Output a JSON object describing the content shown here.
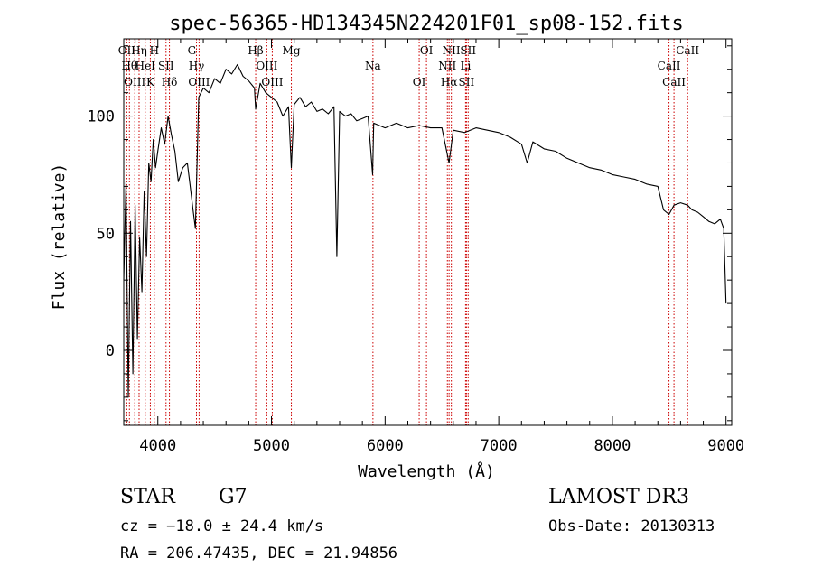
{
  "chart_data": {
    "type": "line",
    "title": "spec-56365-HD134345N224201F01_sp08-152.fits",
    "xlabel": "Wavelength (Å)",
    "ylabel": "Flux (relative)",
    "xlim": [
      3700,
      9050
    ],
    "ylim": [
      -32,
      133
    ],
    "x_ticks": [
      4000,
      5000,
      6000,
      7000,
      8000,
      9000
    ],
    "y_ticks": [
      0,
      50,
      100
    ],
    "grid": false,
    "line_color": "#000000",
    "marker_color": "#cc0000",
    "series": [
      {
        "x": [
          3700,
          3720,
          3740,
          3760,
          3780,
          3800,
          3820,
          3840,
          3860,
          3880,
          3900,
          3920,
          3940,
          3960,
          3980,
          4000,
          4030,
          4060,
          4090,
          4120,
          4150,
          4180,
          4220,
          4260,
          4290,
          4310,
          4330,
          4360,
          4400,
          4450,
          4500,
          4550,
          4600,
          4650,
          4700,
          4750,
          4800,
          4850,
          4861,
          4900,
          4950,
          5000,
          5050,
          5100,
          5150,
          5175,
          5200,
          5250,
          5300,
          5350,
          5400,
          5450,
          5500,
          5550,
          5575,
          5600,
          5650,
          5700,
          5750,
          5800,
          5850,
          5890,
          5900,
          5950,
          6000,
          6100,
          6200,
          6300,
          6400,
          6500,
          6563,
          6600,
          6700,
          6800,
          6900,
          7000,
          7100,
          7200,
          7250,
          7300,
          7400,
          7500,
          7600,
          7700,
          7800,
          7900,
          8000,
          8100,
          8200,
          8300,
          8400,
          8450,
          8498,
          8542,
          8600,
          8662,
          8700,
          8750,
          8800,
          8850,
          8900,
          8950,
          8980,
          9000
        ],
        "values": [
          30,
          72,
          -20,
          55,
          -10,
          62,
          5,
          48,
          25,
          68,
          40,
          80,
          72,
          90,
          78,
          85,
          95,
          88,
          100,
          92,
          85,
          72,
          78,
          80,
          68,
          60,
          52,
          108,
          112,
          110,
          116,
          114,
          120,
          118,
          122,
          117,
          115,
          112,
          103,
          114,
          110,
          108,
          106,
          100,
          104,
          78,
          105,
          108,
          104,
          106,
          102,
          103,
          101,
          104,
          40,
          102,
          100,
          101,
          98,
          99,
          100,
          75,
          97,
          96,
          95,
          97,
          95,
          96,
          95,
          95,
          80,
          94,
          93,
          95,
          94,
          93,
          91,
          88,
          80,
          89,
          86,
          85,
          82,
          80,
          78,
          77,
          75,
          74,
          73,
          71,
          70,
          60,
          58,
          62,
          63,
          62,
          60,
          59,
          57,
          55,
          54,
          56,
          52,
          20
        ]
      }
    ],
    "lines": [
      {
        "x": 3727,
        "label": "OII"
      },
      {
        "x": 3750,
        "label": "Hθ"
      },
      {
        "x": 3797,
        "label": "OIII"
      },
      {
        "x": 3835,
        "label": "Hη"
      },
      {
        "x": 3889,
        "label": "HeI"
      },
      {
        "x": 3934,
        "label": "K"
      },
      {
        "x": 3969,
        "label": "H"
      },
      {
        "x": 4072,
        "label": "SII"
      },
      {
        "x": 4102,
        "label": "Hδ"
      },
      {
        "x": 4300,
        "label": "G"
      },
      {
        "x": 4340,
        "label": "Hγ"
      },
      {
        "x": 4363,
        "label": "OIII"
      },
      {
        "x": 4861,
        "label": "Hβ"
      },
      {
        "x": 4959,
        "label": "OIII"
      },
      {
        "x": 5007,
        "label": "OIII"
      },
      {
        "x": 5175,
        "label": "Mg"
      },
      {
        "x": 5893,
        "label": "Na"
      },
      {
        "x": 6300,
        "label": "OI"
      },
      {
        "x": 6364,
        "label": "OI"
      },
      {
        "x": 6548,
        "label": "NII"
      },
      {
        "x": 6563,
        "label": "Hα"
      },
      {
        "x": 6583,
        "label": "NII"
      },
      {
        "x": 6708,
        "label": "Li"
      },
      {
        "x": 6716,
        "label": "SII"
      },
      {
        "x": 6731,
        "label": "SII"
      },
      {
        "x": 8498,
        "label": "CaII"
      },
      {
        "x": 8542,
        "label": "CaII"
      },
      {
        "x": 8662,
        "label": "CaII"
      }
    ]
  },
  "info": {
    "object_class": "STAR",
    "subclass": "G7",
    "cz": "cz = −18.0 ± 24.4 km/s",
    "radec": "RA = 206.47435, DEC =  21.94856",
    "survey": "LAMOST DR3",
    "obs_date": "Obs-Date: 20130313"
  }
}
